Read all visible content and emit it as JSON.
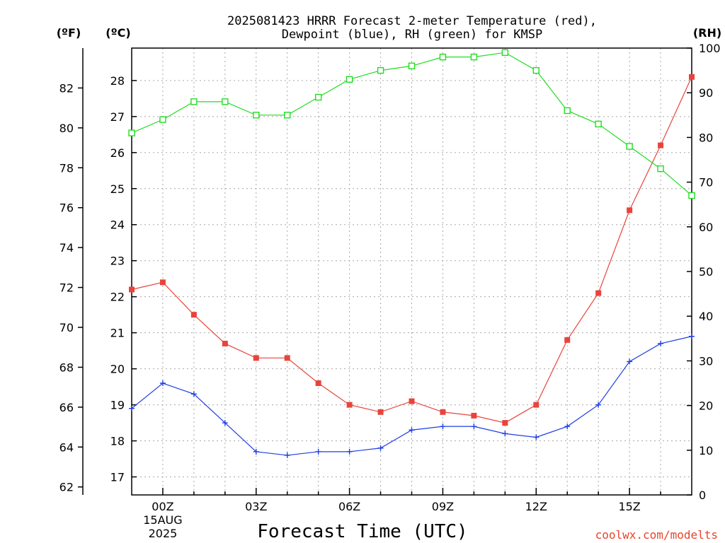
{
  "chart_data": {
    "type": "line",
    "title_lines": [
      "2025081423 HRRR Forecast 2-meter Temperature (red),",
      "Dewpoint (blue), RH (green) for KMSP"
    ],
    "xlabel": "Forecast Time (UTC)",
    "credit": "coolwx.com/modelts",
    "x_ticks": [
      {
        "hour": 0,
        "lines": [
          "00Z",
          "15AUG",
          "2025"
        ]
      },
      {
        "hour": 3,
        "lines": [
          "03Z"
        ]
      },
      {
        "hour": 6,
        "lines": [
          "06Z"
        ]
      },
      {
        "hour": 9,
        "lines": [
          "09Z"
        ]
      },
      {
        "hour": 12,
        "lines": [
          "12Z"
        ]
      },
      {
        "hour": 15,
        "lines": [
          "15Z"
        ]
      }
    ],
    "x_range_hours": [
      -1,
      17
    ],
    "x": [
      -1,
      0,
      1,
      2,
      3,
      4,
      5,
      6,
      7,
      8,
      9,
      10,
      11,
      12,
      13,
      14,
      15,
      16,
      17
    ],
    "left_axes": [
      {
        "unit_label": "(ºF)",
        "range": [
          61.6,
          84.0
        ],
        "ticks": [
          62,
          64,
          66,
          68,
          70,
          72,
          74,
          76,
          78,
          80,
          82
        ]
      },
      {
        "unit_label": "(ºC)",
        "range": [
          16.5,
          28.9
        ],
        "ticks": [
          17,
          18,
          19,
          20,
          21,
          22,
          23,
          24,
          25,
          26,
          27,
          28
        ]
      }
    ],
    "right_axis": {
      "unit_label": "(RH)",
      "range": [
        0,
        100
      ],
      "ticks": [
        0,
        10,
        20,
        30,
        40,
        50,
        60,
        70,
        80,
        90,
        100
      ]
    },
    "grid": true,
    "series": [
      {
        "name": "Temperature",
        "color": "#e8443c",
        "marker": "square",
        "axis": "celsius",
        "values": [
          22.2,
          22.4,
          21.5,
          20.7,
          20.3,
          20.3,
          19.6,
          19.0,
          18.8,
          19.1,
          18.8,
          18.7,
          18.5,
          19.0,
          20.8,
          22.1,
          24.4,
          26.2,
          28.1
        ]
      },
      {
        "name": "Dewpoint",
        "color": "#1e3ee6",
        "marker": "plus",
        "axis": "celsius",
        "values": [
          18.9,
          19.6,
          19.3,
          18.5,
          17.7,
          17.6,
          17.7,
          17.7,
          17.8,
          18.3,
          18.4,
          18.4,
          18.2,
          18.1,
          18.4,
          19.0,
          20.2,
          20.7,
          20.9
        ]
      },
      {
        "name": "RH",
        "color": "#22dd22",
        "marker": "open-square",
        "axis": "rh",
        "values": [
          81,
          84,
          88,
          88,
          85,
          85,
          89,
          93,
          95,
          96,
          98,
          98,
          99,
          95,
          86,
          83,
          78,
          73,
          67
        ]
      }
    ]
  }
}
